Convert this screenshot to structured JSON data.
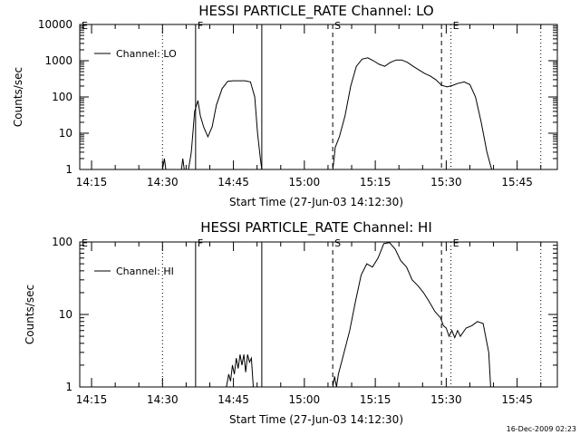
{
  "footer": {
    "timestamp": "16-Dec-2009 02:23"
  },
  "chart_data": [
    {
      "type": "line",
      "title": "HESSI PARTICLE_RATE Channel: LO",
      "xlabel": "Start Time (27-Jun-03 14:12:30)",
      "ylabel": "Counts/sec",
      "legend": "Channel: LO",
      "legend_position": "top-left",
      "y_scale": "log",
      "ylim": [
        1,
        10000
      ],
      "yticks": [
        "1",
        "10",
        "100",
        "1000",
        "10000"
      ],
      "xlim": [
        "14:12:30",
        "15:53:30"
      ],
      "xticks": [
        "14:15",
        "14:30",
        "14:45",
        "15:00",
        "15:15",
        "15:30",
        "15:45"
      ],
      "markers": [
        {
          "label": "E",
          "time": "14:12:30",
          "style": "none"
        },
        {
          "label": "",
          "time": "14:30:00",
          "style": "dotted"
        },
        {
          "label": "F",
          "time": "14:37:00",
          "style": "solid"
        },
        {
          "label": "",
          "time": "14:51:00",
          "style": "solid"
        },
        {
          "label": "S",
          "time": "15:06:00",
          "style": "dashed"
        },
        {
          "label": "",
          "time": "15:29:00",
          "style": "dashed"
        },
        {
          "label": "E",
          "time": "15:31:00",
          "style": "dotted"
        },
        {
          "label": "",
          "time": "15:50:00",
          "style": "dotted"
        }
      ],
      "series": [
        {
          "name": "Channel: LO",
          "x": [
            "14:30:00",
            "14:30:24",
            "14:30:42",
            "14:34:00",
            "14:34:18",
            "14:34:36",
            "14:35:30",
            "14:36:06",
            "14:36:48",
            "14:37:30",
            "14:38:00",
            "14:38:42",
            "14:39:36",
            "14:40:30",
            "14:41:24",
            "14:42:36",
            "14:43:48",
            "14:45:00",
            "14:46:12",
            "14:47:24",
            "14:48:36",
            "14:49:30",
            "14:50:06",
            "14:50:42",
            "14:51:00",
            "14:51:24",
            "15:06:00",
            "15:06:18",
            "15:06:30",
            "15:07:24",
            "15:08:36",
            "15:09:48",
            "15:11:00",
            "15:12:12",
            "15:13:24",
            "15:14:36",
            "15:15:48",
            "15:17:00",
            "15:18:12",
            "15:19:24",
            "15:20:36",
            "15:21:48",
            "15:23:00",
            "15:24:12",
            "15:25:24",
            "15:26:36",
            "15:27:48",
            "15:29:00",
            "15:30:12",
            "15:31:24",
            "15:32:36",
            "15:33:48",
            "15:35:00",
            "15:36:12",
            "15:37:24",
            "15:38:36",
            "15:39:36"
          ],
          "y": [
            1,
            2,
            1,
            1,
            2,
            1,
            1,
            3,
            40,
            80,
            30,
            15,
            8,
            15,
            60,
            170,
            270,
            280,
            280,
            280,
            260,
            100,
            10,
            2,
            1,
            1,
            1,
            2,
            4,
            8,
            30,
            200,
            700,
            1100,
            1200,
            1000,
            800,
            700,
            900,
            1050,
            1050,
            900,
            700,
            560,
            450,
            380,
            300,
            210,
            190,
            210,
            240,
            260,
            220,
            100,
            20,
            3,
            1
          ]
        }
      ]
    },
    {
      "type": "line",
      "title": "HESSI PARTICLE_RATE Channel: HI",
      "xlabel": "Start Time (27-Jun-03 14:12:30)",
      "ylabel": "Counts/sec",
      "legend": "Channel: HI",
      "legend_position": "top-left",
      "y_scale": "log",
      "ylim": [
        1,
        100
      ],
      "yticks": [
        "1",
        "10",
        "100"
      ],
      "xlim": [
        "14:12:30",
        "15:53:30"
      ],
      "xticks": [
        "14:15",
        "14:30",
        "14:45",
        "15:00",
        "15:15",
        "15:30",
        "15:45"
      ],
      "markers": [
        {
          "label": "E",
          "time": "14:12:30",
          "style": "none"
        },
        {
          "label": "",
          "time": "14:30:00",
          "style": "dotted"
        },
        {
          "label": "F",
          "time": "14:37:00",
          "style": "solid"
        },
        {
          "label": "",
          "time": "14:51:00",
          "style": "solid"
        },
        {
          "label": "S",
          "time": "15:06:00",
          "style": "dashed"
        },
        {
          "label": "",
          "time": "15:29:00",
          "style": "dashed"
        },
        {
          "label": "E",
          "time": "15:31:00",
          "style": "dotted"
        },
        {
          "label": "",
          "time": "15:50:00",
          "style": "dotted"
        }
      ],
      "series": [
        {
          "name": "Channel: HI",
          "x": [
            "14:43:30",
            "14:44:00",
            "14:44:24",
            "14:44:48",
            "14:45:12",
            "14:45:36",
            "14:46:00",
            "14:46:24",
            "14:46:48",
            "14:47:12",
            "14:47:36",
            "14:48:00",
            "14:48:24",
            "14:48:48",
            "14:49:12",
            "15:06:00",
            "15:06:24",
            "15:06:48",
            "15:07:12",
            "15:08:24",
            "15:09:36",
            "15:10:48",
            "15:12:00",
            "15:13:12",
            "15:14:24",
            "15:15:36",
            "15:16:48",
            "15:18:00",
            "15:19:12",
            "15:20:24",
            "15:21:36",
            "15:22:48",
            "15:24:00",
            "15:25:12",
            "15:26:24",
            "15:27:36",
            "15:28:48",
            "15:29:24",
            "15:30:00",
            "15:30:36",
            "15:31:12",
            "15:31:48",
            "15:32:24",
            "15:33:00",
            "15:34:12",
            "15:35:24",
            "15:36:36",
            "15:37:48",
            "15:39:00",
            "15:39:24"
          ],
          "y": [
            1,
            1.5,
            1.2,
            2,
            1.5,
            2.5,
            1.8,
            2.8,
            2,
            2.8,
            1.6,
            2.8,
            2.2,
            2.5,
            1,
            1,
            1.4,
            1,
            1.5,
            3,
            6,
            15,
            35,
            50,
            45,
            60,
            95,
            98,
            80,
            55,
            45,
            30,
            25,
            20,
            15,
            11,
            9,
            7,
            6.5,
            5,
            6,
            4.8,
            6,
            5,
            6.5,
            7,
            8,
            7.5,
            3,
            1
          ]
        }
      ]
    }
  ]
}
